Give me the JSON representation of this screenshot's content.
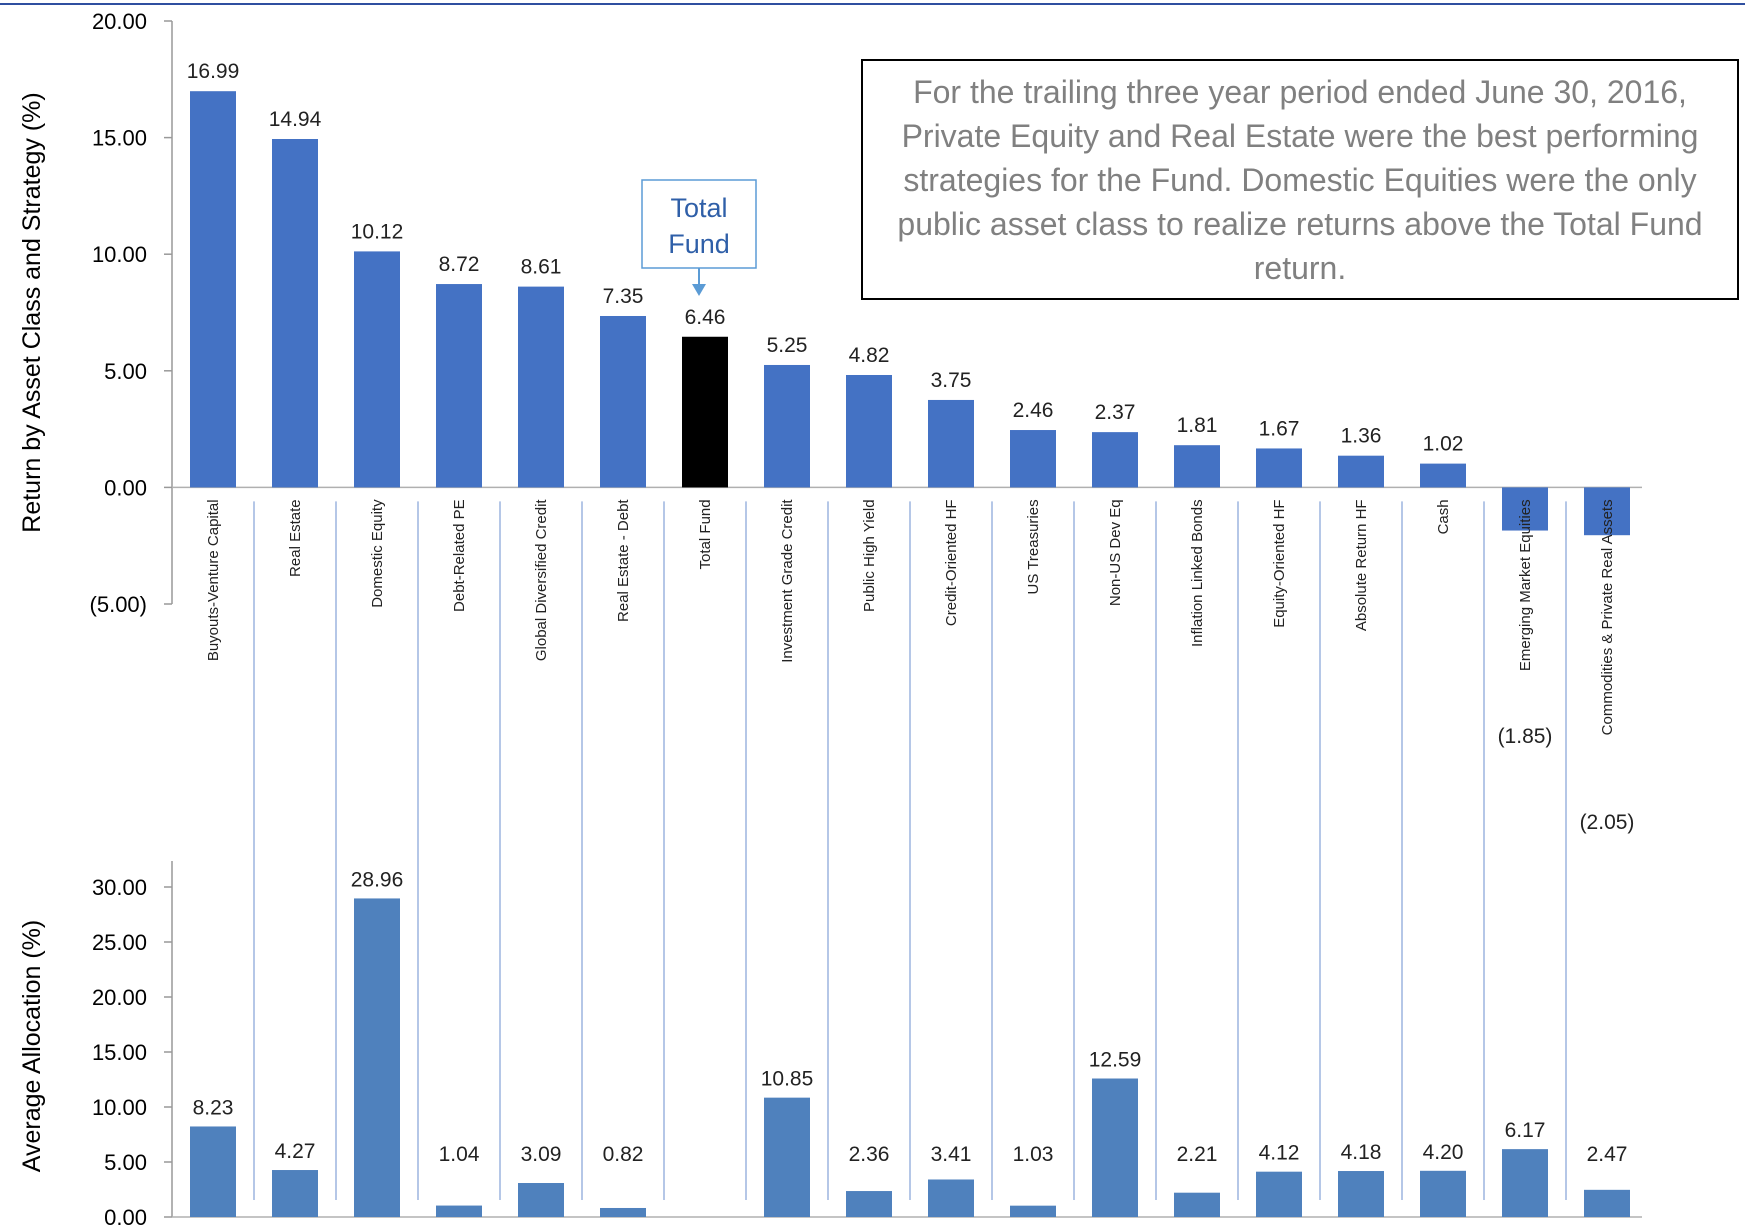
{
  "chart_data": [
    {
      "type": "bar",
      "ylabel": "Return by Asset Class and Strategy (%)",
      "ylim": [
        -5,
        20
      ],
      "yticks": [
        "(5.00)",
        "0.00",
        "5.00",
        "10.00",
        "15.00",
        "20.00"
      ],
      "categories": [
        "Buyouts-Venture Capital",
        "Real Estate",
        "Domestic Equity",
        "Debt-Related PE",
        "Global Diversified Credit",
        "Real Estate - Debt",
        "Total Fund",
        "Investment Grade Credit",
        "Public High Yield",
        "Credit-Oriented HF",
        "US Treasuries",
        "Non-US Dev Eq",
        "Inflation Linked Bonds",
        "Equity-Oriented HF",
        "Absolute Return HF",
        "Cash",
        "Emerging Market Equities",
        "Commodities & Private Real Assets"
      ],
      "values": [
        16.99,
        14.94,
        10.12,
        8.72,
        8.61,
        7.35,
        6.46,
        5.25,
        4.82,
        3.75,
        2.46,
        2.37,
        1.81,
        1.67,
        1.36,
        1.02,
        -1.85,
        -2.05
      ],
      "value_labels": [
        "16.99",
        "14.94",
        "10.12",
        "8.72",
        "8.61",
        "7.35",
        "6.46",
        "5.25",
        "4.82",
        "3.75",
        "2.46",
        "2.37",
        "1.81",
        "1.67",
        "1.36",
        "1.02",
        "(1.85)",
        "(2.05)"
      ],
      "highlight_category": "Total Fund",
      "callout": "Total Fund",
      "annotation": "For the trailing three year period ended June 30, 2016, Private Equity and Real Estate were the best performing strategies for the Fund.  Domestic Equities were the only public asset class to realize returns above the Total Fund return.",
      "colors": {
        "bar": "#4472c4",
        "highlight": "#000000",
        "callout_border": "#5b9bd5",
        "callout_text": "#2f5fa8",
        "annotation_text": "#808080"
      }
    },
    {
      "type": "bar",
      "ylabel": "Average Allocation (%)",
      "ylim": [
        0,
        30
      ],
      "yticks": [
        "0.00",
        "5.00",
        "10.00",
        "15.00",
        "20.00",
        "25.00",
        "30.00"
      ],
      "categories": [
        "Buyouts-Venture Capital",
        "Real Estate",
        "Domestic Equity",
        "Debt-Related PE",
        "Global Diversified Credit",
        "Real Estate - Debt",
        "Total Fund",
        "Investment Grade Credit",
        "Public High Yield",
        "Credit-Oriented HF",
        "US Treasuries",
        "Non-US Dev Eq",
        "Inflation Linked Bonds",
        "Equity-Oriented HF",
        "Absolute Return HF",
        "Cash",
        "Emerging Market Equities",
        "Commodities & Private Real Assets"
      ],
      "values": [
        8.23,
        4.27,
        28.96,
        1.04,
        3.09,
        0.82,
        null,
        10.85,
        2.36,
        3.41,
        1.03,
        12.59,
        2.21,
        4.12,
        4.18,
        4.2,
        6.17,
        2.47
      ],
      "value_labels": [
        "8.23",
        "4.27",
        "28.96",
        "1.04",
        "3.09",
        "0.82",
        "",
        "10.85",
        "2.36",
        "3.41",
        "1.03",
        "12.59",
        "2.21",
        "4.12",
        "4.18",
        "4.20",
        "6.17",
        "2.47"
      ],
      "colors": {
        "bar": "#4f81bd",
        "separator": "#6b8fcf"
      }
    }
  ]
}
